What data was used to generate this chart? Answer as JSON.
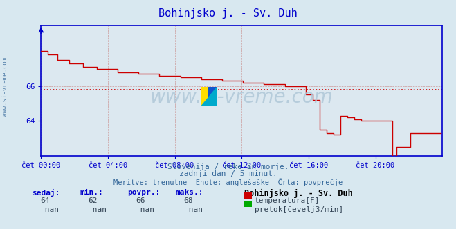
{
  "title": "Bohinjsko j. - Sv. Duh",
  "bg_color": "#d8e8f0",
  "plot_bg_color": "#dce8f0",
  "line_color": "#cc0000",
  "avg_line_color": "#cc0000",
  "axis_color": "#0000cc",
  "grid_color": "#cc9999",
  "text_color": "#336699",
  "xtick_labels": [
    "čet 00:00",
    "čet 04:00",
    "čet 08:00",
    "čet 12:00",
    "čet 16:00",
    "čet 20:00"
  ],
  "xtick_positions": [
    0,
    48,
    96,
    144,
    192,
    240
  ],
  "ytick_labels": [
    "66",
    "64"
  ],
  "ytick_values": [
    66,
    64
  ],
  "ylim": [
    62.0,
    69.5
  ],
  "xlim": [
    0,
    288
  ],
  "avg_value": 65.8,
  "legend_station": "Bohinjsko j. - Sv. Duh",
  "legend_temp": "temperatura[F]",
  "legend_flow": "pretok[čevelj3/min]",
  "temp_color": "#cc0000",
  "flow_color": "#00aa00",
  "stats_headers": [
    "sedaj:",
    "min.:",
    "povpr.:",
    "maks.:"
  ],
  "stats_temp": [
    "64",
    "62",
    "66",
    "68"
  ],
  "stats_flow": [
    "-nan",
    "-nan",
    "-nan",
    "-nan"
  ],
  "subtitle1": "Slovenija / reke in morje.",
  "subtitle2": "zadnji dan / 5 minut.",
  "subtitle3": "Meritve: trenutne  Enote: anglešaške  Črta: povprečje",
  "watermark": "www.si-vreme.com"
}
